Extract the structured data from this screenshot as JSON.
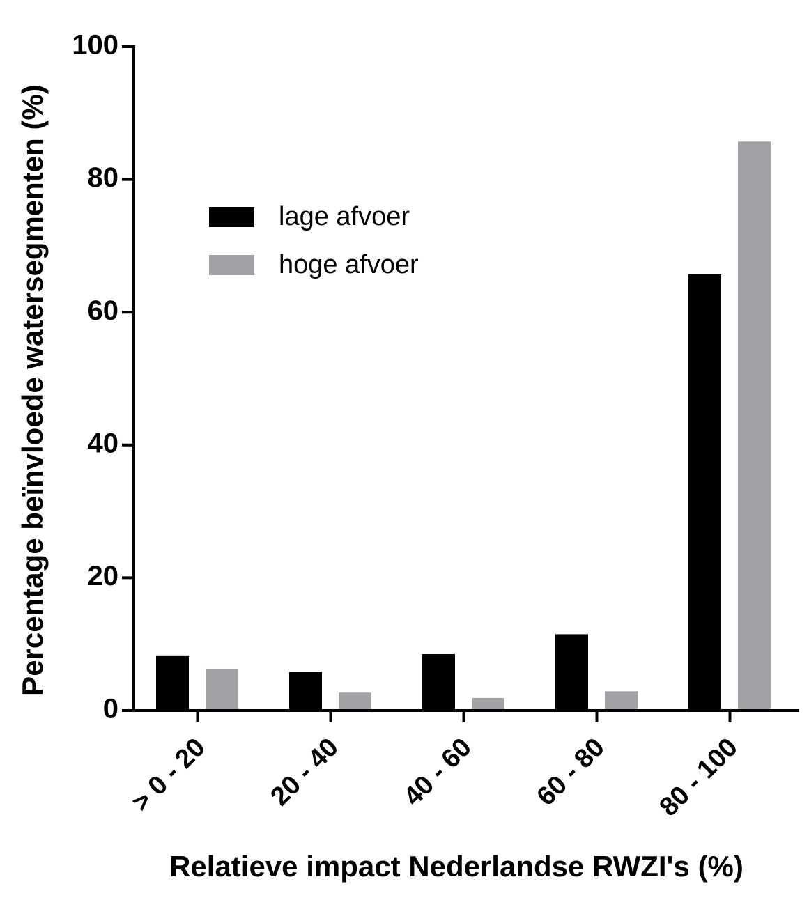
{
  "chart_data": {
    "type": "bar",
    "categories": [
      "> 0 - 20",
      "20 - 40",
      "40 - 60",
      "60 - 80",
      "80 - 100"
    ],
    "series": [
      {
        "name": "lage afvoer",
        "color": "#000000",
        "values": [
          8.2,
          5.8,
          8.5,
          11.5,
          65.7
        ]
      },
      {
        "name": "hoge afvoer",
        "color": "#a2a2a6",
        "values": [
          6.3,
          2.7,
          1.9,
          2.9,
          85.7
        ]
      }
    ],
    "x_label": "Relatieve impact Nederlandse RWZI's (%)",
    "y_label": "Percentage beïnvloede watersegmenten (%)",
    "ylim": [
      0,
      100
    ],
    "yticks": [
      0,
      20,
      40,
      60,
      80,
      100
    ]
  }
}
